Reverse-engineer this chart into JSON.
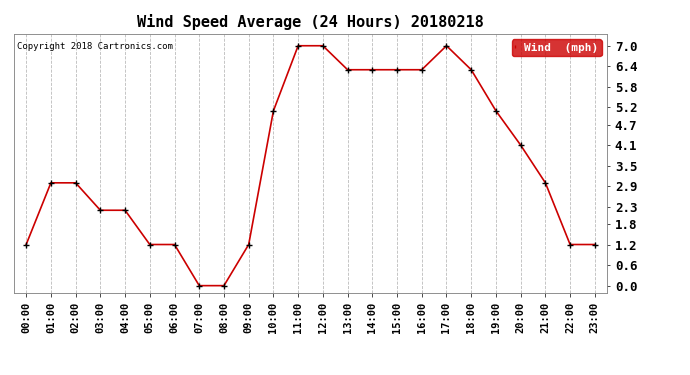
{
  "title": "Wind Speed Average (24 Hours) 20180218",
  "copyright_text": "Copyright 2018 Cartronics.com",
  "x_labels": [
    "00:00",
    "01:00",
    "02:00",
    "03:00",
    "04:00",
    "05:00",
    "06:00",
    "07:00",
    "08:00",
    "09:00",
    "10:00",
    "11:00",
    "12:00",
    "13:00",
    "14:00",
    "15:00",
    "16:00",
    "17:00",
    "18:00",
    "19:00",
    "20:00",
    "21:00",
    "22:00",
    "23:00"
  ],
  "wind_values": [
    1.2,
    3.0,
    3.0,
    2.2,
    2.2,
    1.2,
    1.2,
    0.0,
    0.0,
    1.2,
    5.1,
    7.0,
    7.0,
    6.3,
    6.3,
    6.3,
    6.3,
    7.0,
    6.3,
    5.1,
    4.1,
    3.0,
    1.2,
    1.2
  ],
  "line_color": "#cc0000",
  "marker_color": "#000000",
  "legend_label": "Wind  (mph)",
  "legend_bg": "#cc0000",
  "legend_text_color": "#ffffff",
  "y_ticks": [
    0.0,
    0.6,
    1.2,
    1.8,
    2.3,
    2.9,
    3.5,
    4.1,
    4.7,
    5.2,
    5.8,
    6.4,
    7.0
  ],
  "ylim": [
    -0.2,
    7.35
  ],
  "bg_color": "#ffffff",
  "grid_color": "#bbbbbb",
  "title_fontsize": 11,
  "axis_fontsize": 7.5,
  "ytick_fontsize": 9
}
